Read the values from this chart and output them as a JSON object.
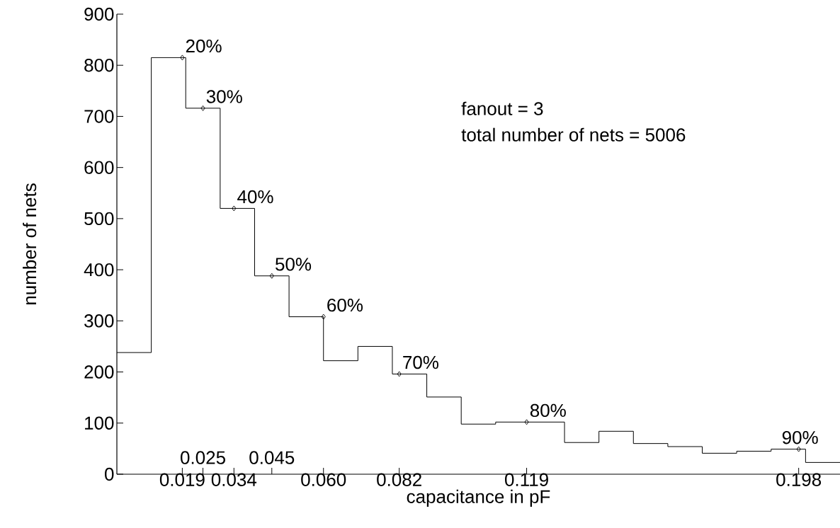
{
  "chart_data": {
    "type": "histogram",
    "xlabel": "capacitance in pF",
    "ylabel": "number of nets",
    "bins": [
      0,
      0.01,
      0.02,
      0.03,
      0.04,
      0.05,
      0.06,
      0.07,
      0.08,
      0.09,
      0.1,
      0.11,
      0.12,
      0.13,
      0.14,
      0.15,
      0.16,
      0.17,
      0.18,
      0.19,
      0.2,
      0.21
    ],
    "values": [
      238,
      815,
      716,
      520,
      388,
      308,
      222,
      250,
      196,
      151,
      98,
      102,
      102,
      62,
      84,
      60,
      54,
      41,
      45,
      49,
      23
    ],
    "color": "#000000",
    "series": [
      {
        "type": "scatter",
        "marker": "diamond",
        "color": "#000000",
        "x": [
          0.019,
          0.025,
          0.034,
          0.045,
          0.06,
          0.082,
          0.119,
          0.198
        ],
        "values": [
          815,
          716,
          520,
          388,
          308,
          196,
          102,
          49
        ]
      }
    ],
    "xlim": [
      0,
      0.21
    ],
    "ylim": [
      0,
      900
    ],
    "xticks": [
      0.019,
      {
        "value": 0.025,
        "label": null
      },
      0.034,
      {
        "value": 0.045,
        "label": null
      },
      {
        "value": 0.06,
        "label": "0.060"
      },
      0.082,
      0.119,
      0.198
    ],
    "yticks": [
      0,
      100,
      200,
      300,
      400,
      500,
      600,
      700,
      800,
      900
    ],
    "annotations": [
      {
        "text": "20%",
        "x": 0.019,
        "y": 815
      },
      {
        "text": "30%",
        "x": 0.025,
        "y": 716
      },
      {
        "text": "40%",
        "x": 0.034,
        "y": 520
      },
      {
        "text": "50%",
        "x": 0.045,
        "y": 388
      },
      {
        "text": "60%",
        "x": 0.06,
        "y": 308
      },
      {
        "text": "70%",
        "x": 0.082,
        "y": 196
      },
      {
        "text": "80%",
        "x": 0.119,
        "y": 102
      },
      {
        "text": "90%",
        "x": 0.198,
        "y": 49
      },
      "0.025",
      "0.045",
      "fanout = 3",
      "total number of nets = 5006"
    ]
  }
}
